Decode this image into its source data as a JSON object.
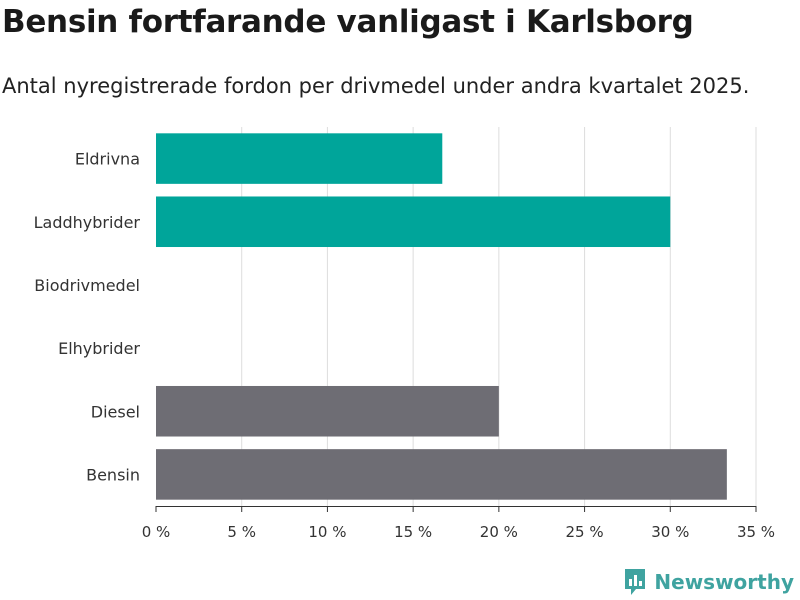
{
  "title": "Bensin fortfarande vanligast i Karlsborg",
  "subtitle": "Antal nyregistrerade fordon per drivmedel under andra kvartalet 2025.",
  "brand": {
    "name": "Newsworthy",
    "icon": "newsworthy-logo-icon",
    "color": "#3fa3a0"
  },
  "chart_data": {
    "type": "bar",
    "orientation": "horizontal",
    "categories": [
      "Eldrivna",
      "Laddhybrider",
      "Biodrivmedel",
      "Elhybrider",
      "Diesel",
      "Bensin"
    ],
    "values": [
      16.7,
      30.0,
      0,
      0,
      20.0,
      33.3
    ],
    "colors": [
      "#00a59a",
      "#00a59a",
      "#00a59a",
      "#00a59a",
      "#6e6d74",
      "#6e6d74"
    ],
    "xlim": [
      0,
      35
    ],
    "xticks": [
      0,
      5,
      10,
      15,
      20,
      25,
      30,
      35
    ],
    "xtick_labels": [
      "0 %",
      "5 %",
      "10 %",
      "15 %",
      "20 %",
      "25 %",
      "30 %",
      "35 %"
    ],
    "grid": true,
    "unit": "%"
  }
}
